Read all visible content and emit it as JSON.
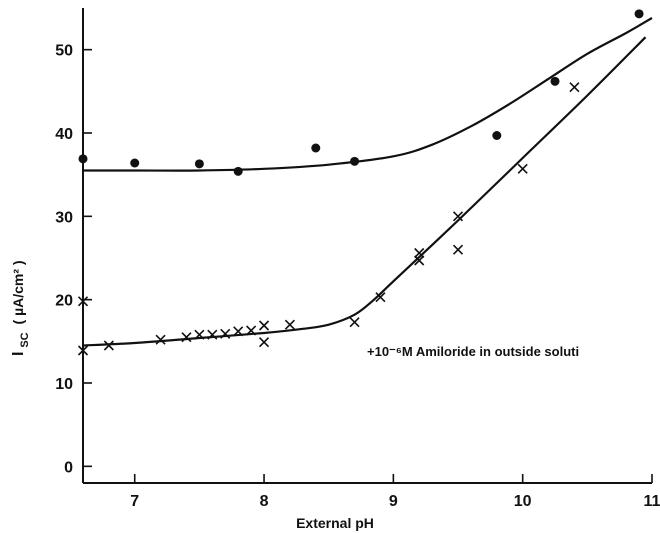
{
  "chart_data": {
    "type": "scatter",
    "xlabel": "External pH",
    "ylabel": "I",
    "ylabel_sub": "SC",
    "ylabel_units": "( µA/cm² )",
    "xlim": [
      6.6,
      11
    ],
    "ylim": [
      -2,
      55
    ],
    "x_ticks": [
      {
        "value": 7,
        "label": "7"
      },
      {
        "value": 8,
        "label": "8"
      },
      {
        "value": 9,
        "label": "9"
      },
      {
        "value": 10,
        "label": "10"
      },
      {
        "value": 11,
        "label": "11"
      }
    ],
    "y_ticks": [
      {
        "value": 0,
        "label": "0"
      },
      {
        "value": 10,
        "label": "10"
      },
      {
        "value": 20,
        "label": "20"
      },
      {
        "value": 30,
        "label": "30"
      },
      {
        "value": 40,
        "label": "40"
      },
      {
        "value": 50,
        "label": "50"
      }
    ],
    "annotation": "+10⁻⁶M Amiloride in outside soluti",
    "series": [
      {
        "marker": "dot",
        "points": [
          [
            6.6,
            36.9
          ],
          [
            7.0,
            36.4
          ],
          [
            7.5,
            36.3
          ],
          [
            7.8,
            35.4
          ],
          [
            8.4,
            38.2
          ],
          [
            8.7,
            36.6
          ],
          [
            9.8,
            39.7
          ],
          [
            10.25,
            46.2
          ],
          [
            10.9,
            54.3
          ]
        ],
        "curve": [
          [
            6.6,
            35.5
          ],
          [
            7.0,
            35.5
          ],
          [
            7.5,
            35.5
          ],
          [
            8.0,
            35.7
          ],
          [
            8.5,
            36.2
          ],
          [
            9.0,
            37.2
          ],
          [
            9.3,
            38.6
          ],
          [
            9.6,
            40.8
          ],
          [
            9.9,
            43.5
          ],
          [
            10.2,
            46.5
          ],
          [
            10.5,
            49.5
          ],
          [
            10.8,
            52.0
          ],
          [
            11.0,
            53.8
          ]
        ]
      },
      {
        "marker": "cross",
        "points": [
          [
            6.6,
            19.8
          ],
          [
            6.6,
            13.9
          ],
          [
            6.8,
            14.5
          ],
          [
            7.2,
            15.2
          ],
          [
            7.4,
            15.5
          ],
          [
            7.5,
            15.8
          ],
          [
            7.6,
            15.8
          ],
          [
            7.7,
            15.9
          ],
          [
            7.8,
            16.2
          ],
          [
            7.9,
            16.3
          ],
          [
            8.0,
            16.9
          ],
          [
            8.0,
            14.9
          ],
          [
            8.2,
            17.0
          ],
          [
            8.7,
            17.3
          ],
          [
            8.9,
            20.3
          ],
          [
            9.2,
            24.7
          ],
          [
            9.2,
            25.6
          ],
          [
            9.5,
            30.0
          ],
          [
            9.5,
            26.0
          ],
          [
            10.0,
            35.7
          ],
          [
            10.4,
            45.5
          ]
        ],
        "curve": [
          [
            6.6,
            14.5
          ],
          [
            7.0,
            14.8
          ],
          [
            7.5,
            15.4
          ],
          [
            8.0,
            16.0
          ],
          [
            8.3,
            16.5
          ],
          [
            8.5,
            17.0
          ],
          [
            8.7,
            18.2
          ],
          [
            8.85,
            20.0
          ],
          [
            9.0,
            22.2
          ],
          [
            9.5,
            29.5
          ],
          [
            10.0,
            37.0
          ],
          [
            10.5,
            44.5
          ],
          [
            10.95,
            51.5
          ]
        ]
      }
    ]
  }
}
